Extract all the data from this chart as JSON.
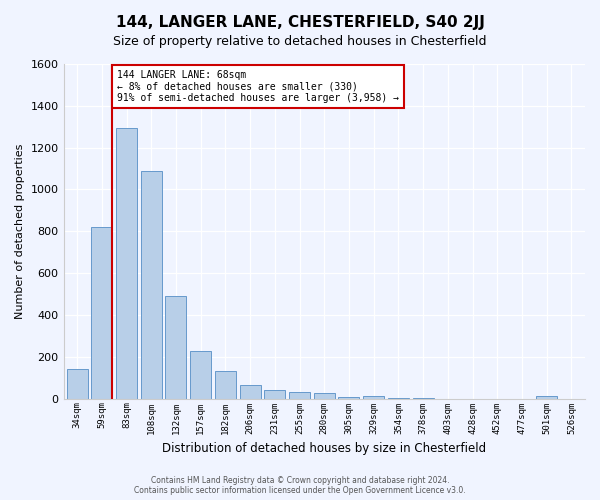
{
  "title": "144, LANGER LANE, CHESTERFIELD, S40 2JJ",
  "subtitle": "Size of property relative to detached houses in Chesterfield",
  "xlabel": "Distribution of detached houses by size in Chesterfield",
  "ylabel": "Number of detached properties",
  "categories": [
    "34sqm",
    "59sqm",
    "83sqm",
    "108sqm",
    "132sqm",
    "157sqm",
    "182sqm",
    "206sqm",
    "231sqm",
    "255sqm",
    "280sqm",
    "305sqm",
    "329sqm",
    "354sqm",
    "378sqm",
    "403sqm",
    "428sqm",
    "452sqm",
    "477sqm",
    "501sqm",
    "526sqm"
  ],
  "values": [
    140,
    820,
    1295,
    1090,
    490,
    230,
    130,
    65,
    40,
    30,
    25,
    10,
    15,
    2,
    5,
    0,
    0,
    0,
    0,
    15,
    0
  ],
  "bar_color": "#b8cfe8",
  "bar_edge_color": "#6699cc",
  "ylim": [
    0,
    1600
  ],
  "yticks": [
    0,
    200,
    400,
    600,
    800,
    1000,
    1200,
    1400,
    1600
  ],
  "property_line_color": "#cc0000",
  "annotation_text": "144 LANGER LANE: 68sqm\n← 8% of detached houses are smaller (330)\n91% of semi-detached houses are larger (3,958) →",
  "annotation_box_facecolor": "#ffffff",
  "annotation_box_edgecolor": "#cc0000",
  "footer_text": "Contains HM Land Registry data © Crown copyright and database right 2024.\nContains public sector information licensed under the Open Government Licence v3.0.",
  "bg_color": "#f0f4ff",
  "grid_color": "#ffffff",
  "title_fontsize": 11,
  "subtitle_fontsize": 9
}
